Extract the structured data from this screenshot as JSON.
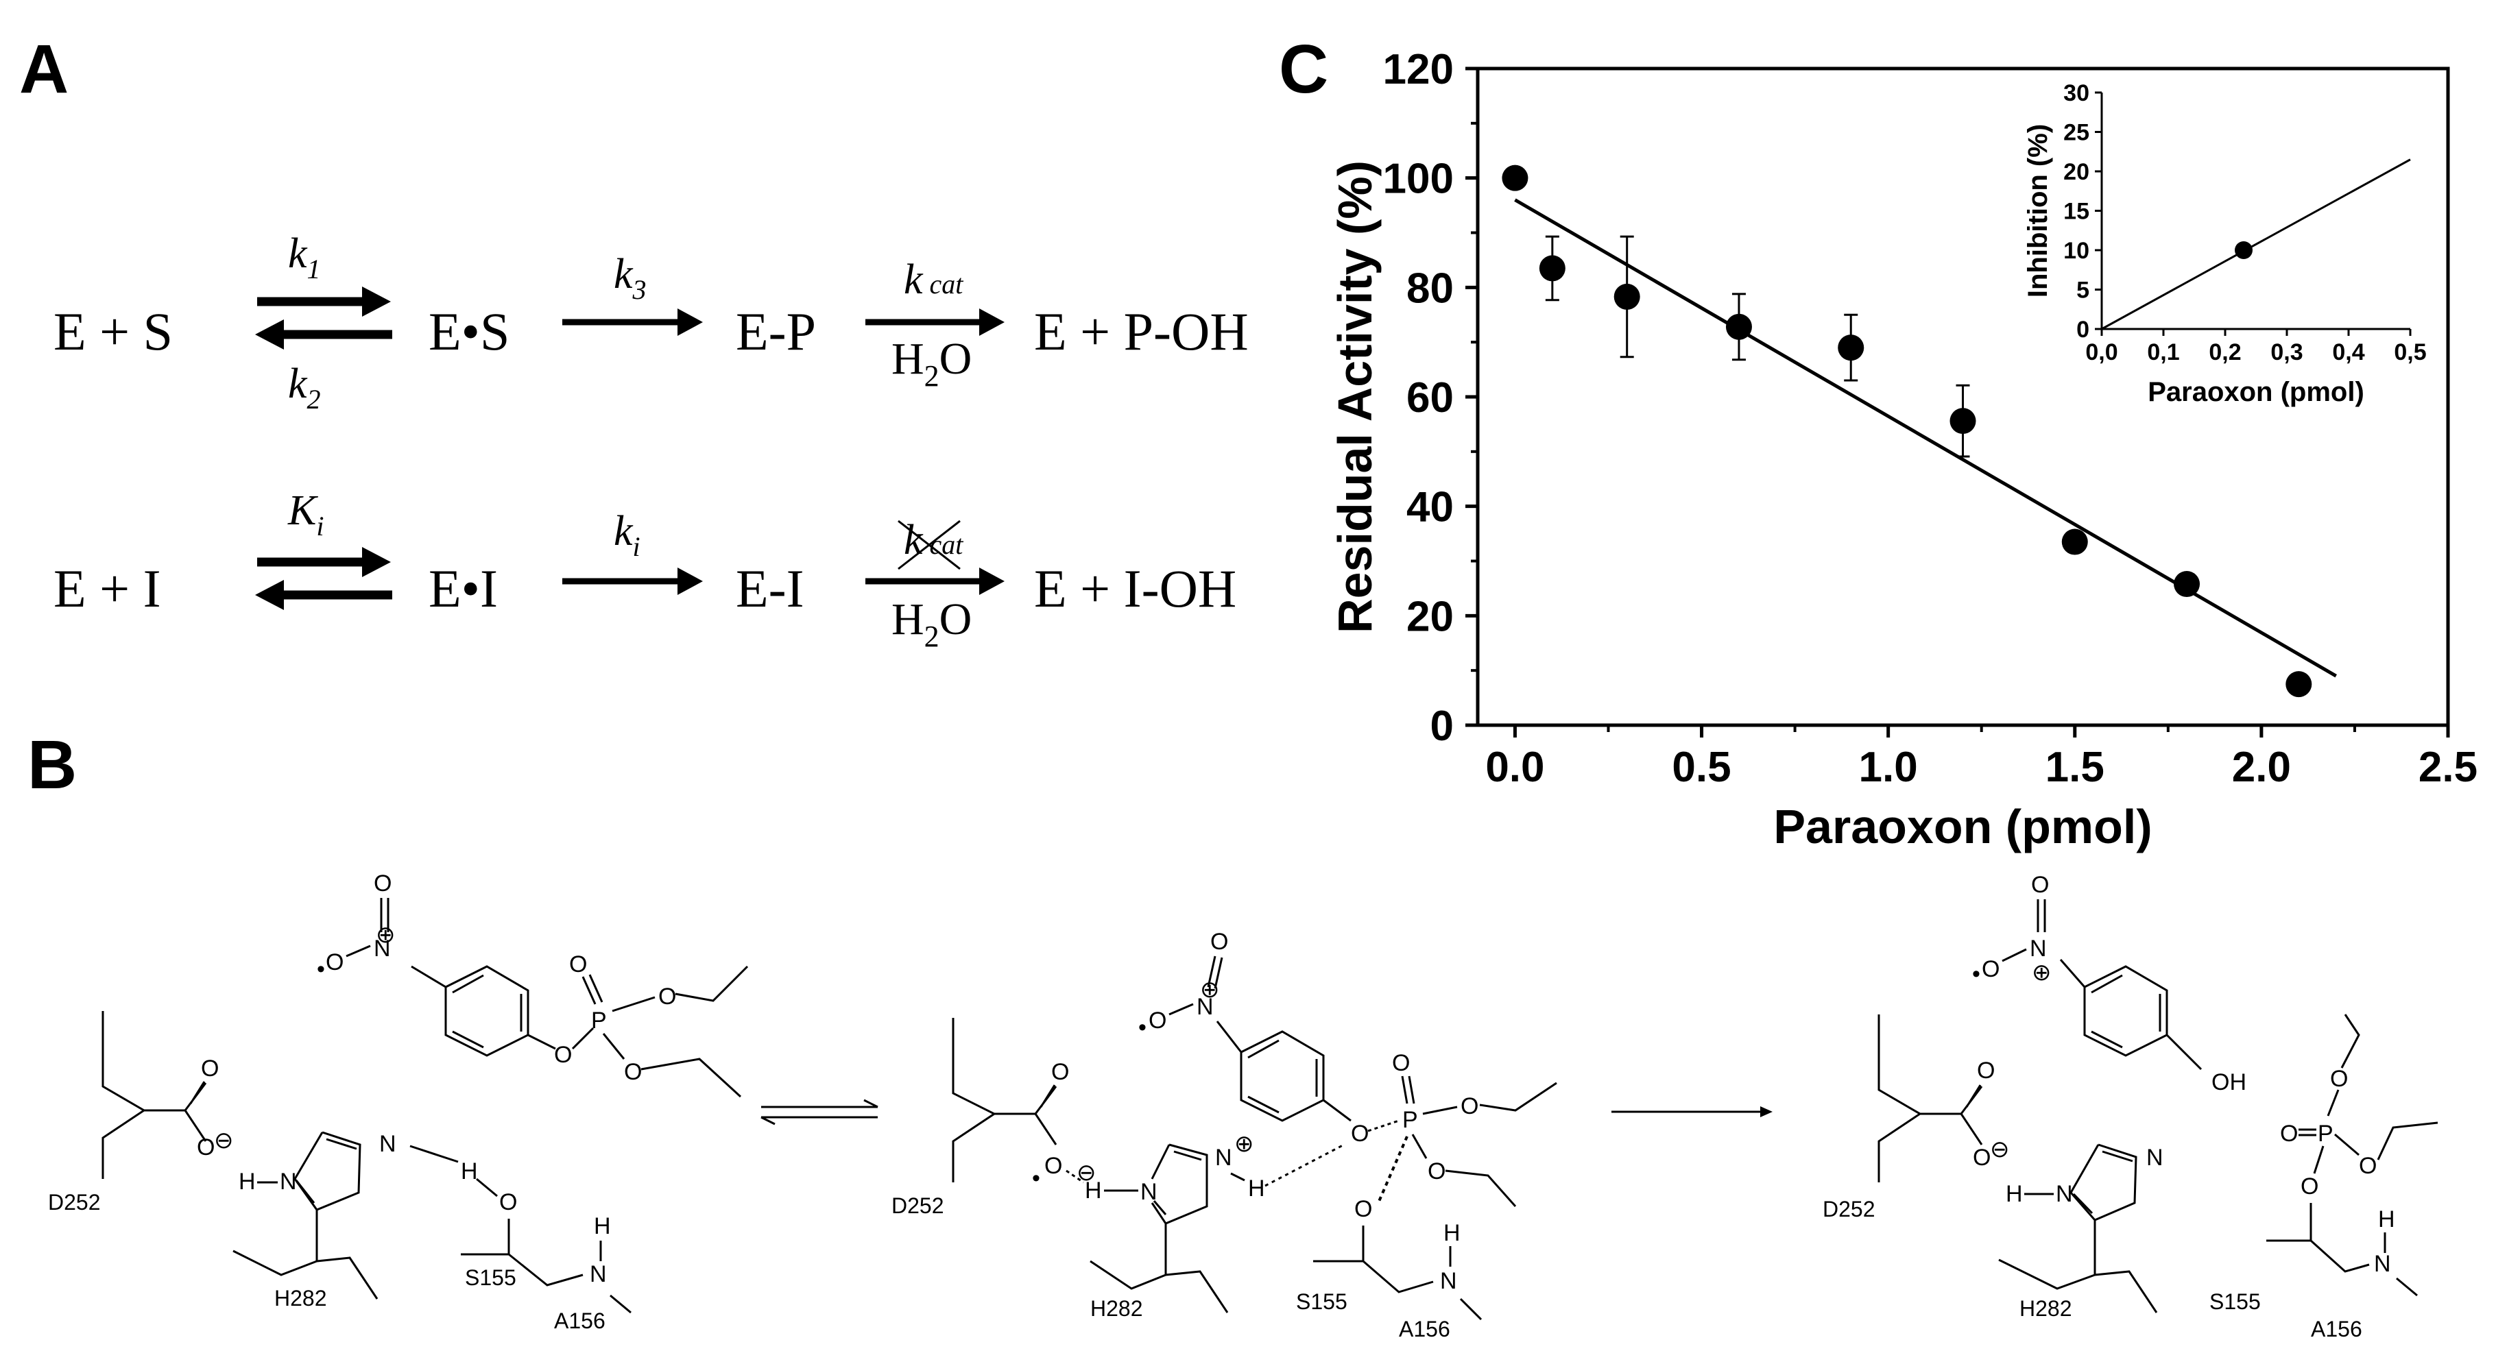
{
  "panels": {
    "a": "A",
    "b": "B",
    "c": "C"
  },
  "scheme": {
    "row1": {
      "reactants": "E + S",
      "k_forward": "k",
      "k_forward_sub": "1",
      "k_reverse": "k",
      "k_reverse_sub": "2",
      "complex": "E•S",
      "k3": "k",
      "k3_sub": "3",
      "intermediate": "E-P",
      "kcat": "k",
      "kcat_sub": "cat",
      "water": "H",
      "water_sub": "2",
      "water_end": "O",
      "products": "E + P-OH"
    },
    "row2": {
      "reactants": "E + I",
      "Ki": "K",
      "Ki_sub": "i",
      "complex": "E•I",
      "ki": "k",
      "ki_sub": "i",
      "intermediate": "E-I",
      "kcat": "k",
      "kcat_sub": "cat",
      "water": "H",
      "water_sub": "2",
      "water_end": "O",
      "products": "E + I-OH"
    }
  },
  "mechanism": {
    "labels": {
      "d252": "D252",
      "h282": "H282",
      "s155": "S155",
      "a156": "A156",
      "o": "O",
      "n": "N",
      "p": "P",
      "h": "H",
      "oh": "OH",
      "plus": "⊕",
      "minus": "⊖",
      "dot": "•"
    }
  },
  "chart_data": [
    {
      "type": "scatter",
      "xlabel": "Paraoxon (pmol)",
      "ylabel": "Residual Activity (%)",
      "xlim": [
        -0.1,
        2.5
      ],
      "ylim": [
        0,
        120
      ],
      "xticks": [
        "0.0",
        "0.5",
        "1.0",
        "1.5",
        "2.0",
        "2.5"
      ],
      "xtick_values": [
        0,
        0.5,
        1.0,
        1.5,
        2.0,
        2.5
      ],
      "yticks": [
        "0",
        "20",
        "40",
        "60",
        "80",
        "100",
        "120"
      ],
      "ytick_values": [
        0,
        20,
        40,
        60,
        80,
        100,
        120
      ],
      "points": [
        {
          "x": 0.0,
          "y": 100,
          "err": 0
        },
        {
          "x": 0.1,
          "y": 83.5,
          "err": 5.8
        },
        {
          "x": 0.3,
          "y": 78.3,
          "err": 11
        },
        {
          "x": 0.6,
          "y": 72.8,
          "err": 6
        },
        {
          "x": 0.9,
          "y": 69,
          "err": 6
        },
        {
          "x": 1.2,
          "y": 55.6,
          "err": 6.5
        },
        {
          "x": 1.5,
          "y": 33.5,
          "err": 0
        },
        {
          "x": 1.8,
          "y": 25.8,
          "err": 0
        },
        {
          "x": 2.1,
          "y": 7.5,
          "err": 0
        }
      ],
      "fit_line": {
        "x": [
          0.0,
          2.2
        ],
        "y": [
          96,
          9
        ]
      },
      "grid": false
    },
    {
      "type": "scatter",
      "xlabel": "Paraoxon (pmol)",
      "ylabel": "Inhibition (%)",
      "xlim": [
        0,
        0.5
      ],
      "ylim": [
        0,
        30
      ],
      "xticks": [
        "0,0",
        "0,1",
        "0,2",
        "0,3",
        "0,4",
        "0,5"
      ],
      "xtick_values": [
        0,
        0.1,
        0.2,
        0.3,
        0.4,
        0.5
      ],
      "yticks": [
        "0",
        "5",
        "10",
        "15",
        "20",
        "25",
        "30"
      ],
      "ytick_values": [
        0,
        5,
        10,
        15,
        20,
        25,
        30
      ],
      "points": [
        {
          "x": 0.23,
          "y": 10
        }
      ],
      "fit_line": {
        "x": [
          0.0,
          0.5
        ],
        "y": [
          0,
          21.5
        ]
      },
      "grid": false
    }
  ]
}
